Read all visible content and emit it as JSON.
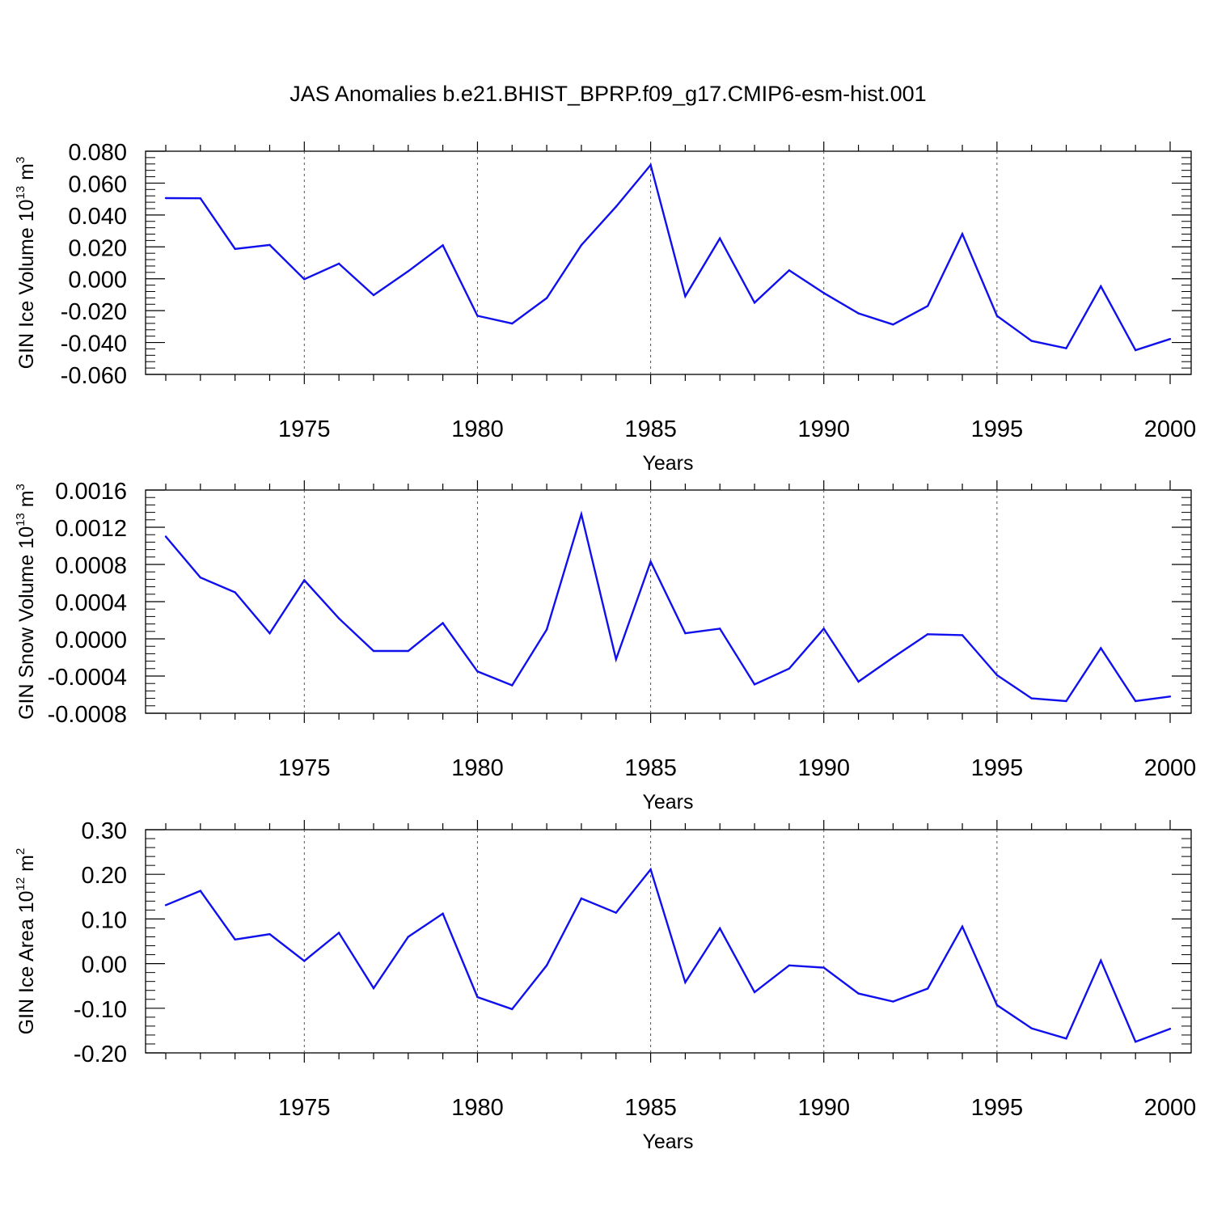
{
  "title": "JAS Anomalies b.e21.BHIST_BPRP.f09_g17.CMIP6-esm-hist.001",
  "colors": {
    "line": "#1010ee",
    "axis": "#000000",
    "grid": "#555555"
  },
  "chart_data": [
    {
      "type": "line",
      "ylabel": {
        "main": "GIN Ice Volume 10",
        "sup": "13",
        "unit": " m",
        "unit_sup": "3"
      },
      "xlabel": "Years",
      "xlim": [
        1971,
        2000
      ],
      "xticks": [
        "1975",
        "1980",
        "1985",
        "1990",
        "1995",
        "2000"
      ],
      "ylim": [
        -0.06,
        0.08
      ],
      "yticks": [
        "0.080",
        "0.060",
        "0.040",
        "0.020",
        "0.000",
        "-0.020",
        "-0.040",
        "-0.060"
      ],
      "ytick_values": [
        0.08,
        0.06,
        0.04,
        0.02,
        0.0,
        -0.02,
        -0.04,
        -0.06
      ],
      "grid": "vertical dashed at major x ticks",
      "x": [
        1971,
        1972,
        1973,
        1974,
        1975,
        1976,
        1977,
        1978,
        1979,
        1980,
        1981,
        1982,
        1983,
        1984,
        1985,
        1986,
        1987,
        1988,
        1989,
        1990,
        1991,
        1992,
        1993,
        1994,
        1995,
        1996,
        1997,
        1998,
        1999,
        2000
      ],
      "values": [
        0.0506,
        0.0505,
        0.0187,
        0.0212,
        -0.0003,
        0.0095,
        -0.0103,
        0.0047,
        0.021,
        -0.0232,
        -0.0281,
        -0.0121,
        0.0211,
        0.0452,
        0.0714,
        -0.011,
        0.0253,
        -0.015,
        0.0053,
        -0.0089,
        -0.0217,
        -0.0287,
        -0.0171,
        0.0281,
        -0.0233,
        -0.039,
        -0.0436,
        -0.0047,
        -0.0448,
        -0.0378
      ]
    },
    {
      "type": "line",
      "ylabel": {
        "main": "GIN Snow Volume 10",
        "sup": "13",
        "unit": " m",
        "unit_sup": "3"
      },
      "xlabel": "Years",
      "xlim": [
        1971,
        2000
      ],
      "xticks": [
        "1975",
        "1980",
        "1985",
        "1990",
        "1995",
        "2000"
      ],
      "ylim": [
        -0.0008,
        0.0016
      ],
      "yticks": [
        "0.0016",
        "0.0012",
        "0.0008",
        "0.0004",
        "0.0000",
        "-0.0004",
        "-0.0008"
      ],
      "ytick_values": [
        0.0016,
        0.0012,
        0.0008,
        0.0004,
        0.0,
        -0.0004,
        -0.0008
      ],
      "grid": "vertical dashed at major x ticks",
      "x": [
        1971,
        1972,
        1973,
        1974,
        1975,
        1976,
        1977,
        1978,
        1979,
        1980,
        1981,
        1982,
        1983,
        1984,
        1985,
        1986,
        1987,
        1988,
        1989,
        1990,
        1991,
        1992,
        1993,
        1994,
        1995,
        1996,
        1997,
        1998,
        1999,
        2000
      ],
      "values": [
        0.0011,
        0.00066,
        0.0005,
        6e-05,
        0.00063,
        0.00022,
        -0.00013,
        -0.00013,
        0.00017,
        -0.00035,
        -0.0005,
        0.0001,
        0.00134,
        -0.00022,
        0.00083,
        6e-05,
        0.00011,
        -0.00049,
        -0.00032,
        0.00011,
        -0.00046,
        -0.0002,
        5e-05,
        4e-05,
        -0.00039,
        -0.00064,
        -0.00067,
        -0.0001,
        -0.00067,
        -0.00062
      ]
    },
    {
      "type": "line",
      "ylabel": {
        "main": "GIN Ice Area 10",
        "sup": "12",
        "unit": " m",
        "unit_sup": "2"
      },
      "xlabel": "Years",
      "xlim": [
        1971,
        2000
      ],
      "xticks": [
        "1975",
        "1980",
        "1985",
        "1990",
        "1995",
        "2000"
      ],
      "ylim": [
        -0.2,
        0.3
      ],
      "yticks": [
        "0.30",
        "0.20",
        "0.10",
        "0.00",
        "-0.10",
        "-0.20"
      ],
      "ytick_values": [
        0.3,
        0.2,
        0.1,
        0.0,
        -0.1,
        -0.2
      ],
      "grid": "vertical dashed at major x ticks",
      "x": [
        1971,
        1972,
        1973,
        1974,
        1975,
        1976,
        1977,
        1978,
        1979,
        1980,
        1981,
        1982,
        1983,
        1984,
        1985,
        1986,
        1987,
        1988,
        1989,
        1990,
        1991,
        1992,
        1993,
        1994,
        1995,
        1996,
        1997,
        1998,
        1999,
        2000
      ],
      "values": [
        0.131,
        0.163,
        0.054,
        0.066,
        0.006,
        0.069,
        -0.055,
        0.06,
        0.112,
        -0.075,
        -0.102,
        -0.004,
        0.146,
        0.114,
        0.211,
        -0.042,
        0.079,
        -0.064,
        -0.004,
        -0.009,
        -0.067,
        -0.085,
        -0.056,
        0.083,
        -0.093,
        -0.145,
        -0.168,
        0.007,
        -0.175,
        -0.146
      ]
    }
  ]
}
